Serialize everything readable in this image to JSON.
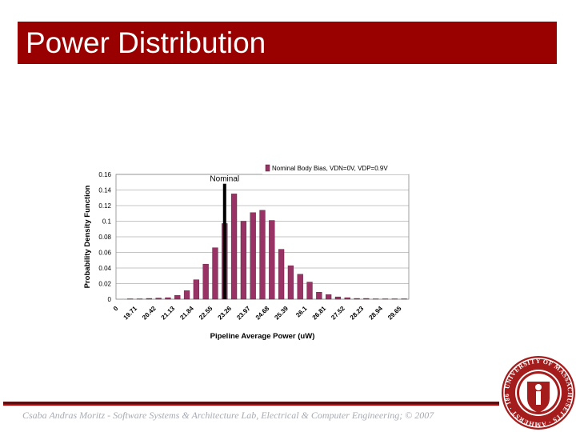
{
  "slide": {
    "title": "Power Distribution",
    "footer": "Csaba Andras Moritz - Software Systems & Architecture Lab, Electrical & Computer Engineering; © 2007"
  },
  "colors": {
    "title_bar": "#990000",
    "bar_fill": "#993366",
    "nominal_bar": "#000000",
    "grid": "#b0b0b0"
  },
  "seal": {
    "text": "UNIVERSITY OF MASSACHUSETTS AMHERST 1863",
    "colors": [
      "#a51c1c",
      "#ffffff"
    ]
  },
  "chart_data": {
    "type": "bar",
    "xlabel": "Pipeline Average Power (uW)",
    "ylabel": "Probability Density Function",
    "ylim": [
      0,
      0.16
    ],
    "yticks": [
      "0.16",
      "0.14",
      "0.12",
      "0.1",
      "0.08",
      "0.06",
      "0.04",
      "0.02",
      "0"
    ],
    "xtick_labels": [
      "0",
      "19.71",
      "20.42",
      "21.13",
      "21.84",
      "22.55",
      "23.26",
      "23.97",
      "24.68",
      "25.39",
      "26.1",
      "26.81",
      "27.52",
      "28.23",
      "28.94",
      "29.65"
    ],
    "legend": "Nominal Body Bias, VDN=0V, VDP=0.9V",
    "legend_position": "top-right",
    "grid": true,
    "series": [
      {
        "name": "Nominal Body Bias, VDN=0V, VDP=0.9V",
        "values": [
          0,
          0.0005,
          0.0005,
          0.001,
          0.0015,
          0.002,
          0.005,
          0.011,
          0.025,
          0.045,
          0.066,
          0.097,
          0.135,
          0.1,
          0.111,
          0.114,
          0.101,
          0.064,
          0.043,
          0.032,
          0.022,
          0.009,
          0.006,
          0.003,
          0.002,
          0.001,
          0.001,
          0.0005,
          0.0005,
          0.0005,
          0.0005
        ]
      }
    ],
    "nominal": {
      "label": "Nominal",
      "x_index": 11.5,
      "value": 0.148
    }
  }
}
